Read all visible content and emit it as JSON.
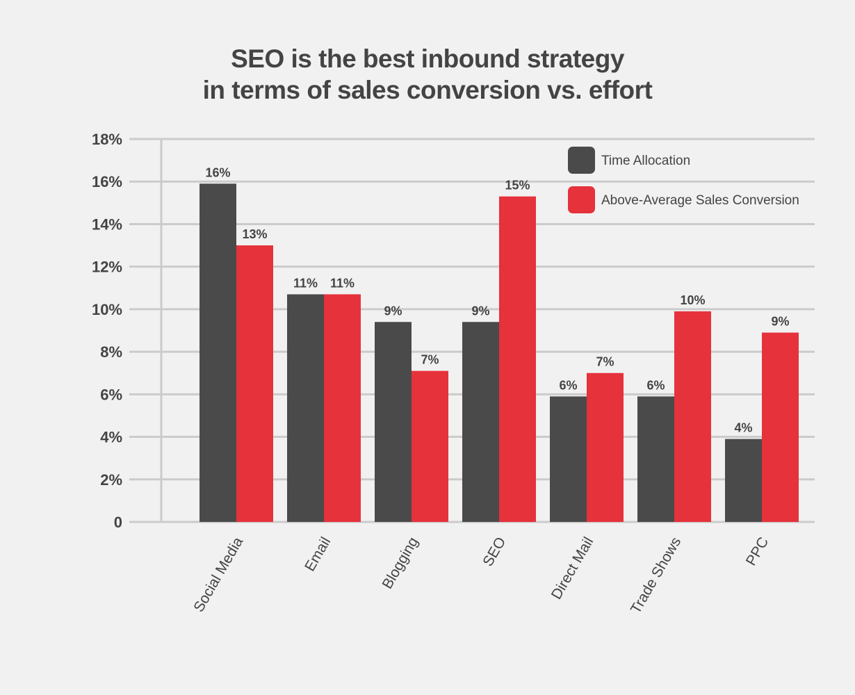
{
  "chart_data": {
    "type": "bar",
    "title": "SEO is the best inbound strategy in terms of sales conversion vs. effort",
    "title_lines": [
      "SEO is the best inbound strategy",
      "in terms of sales conversion vs. effort"
    ],
    "xlabel": "",
    "ylabel": "",
    "categories": [
      "Social Media",
      "Email",
      "Blogging",
      "SEO",
      "Direct Mail",
      "Trade Shows",
      "PPC"
    ],
    "series": [
      {
        "name": "Time Allocation",
        "color": "#4a4a4a",
        "values": [
          15.9,
          10.7,
          9.4,
          9.4,
          5.9,
          5.9,
          3.9
        ],
        "labels": [
          "16%",
          "11%",
          "9%",
          "9%",
          "6%",
          "6%",
          "4%"
        ]
      },
      {
        "name": "Above-Average Sales Conversion",
        "color": "#e5323b",
        "values": [
          13.0,
          10.7,
          7.1,
          15.3,
          7.0,
          9.9,
          8.9
        ],
        "labels": [
          "13%",
          "11%",
          "7%",
          "15%",
          "7%",
          "10%",
          "9%"
        ]
      }
    ],
    "ylim": [
      0,
      18
    ],
    "yticks": [
      0,
      2,
      4,
      6,
      8,
      10,
      12,
      14,
      16,
      18
    ],
    "ytick_labels": [
      "0",
      "2%",
      "4%",
      "6%",
      "8%",
      "10%",
      "12%",
      "14%",
      "16%",
      "18%"
    ],
    "grid": true,
    "legend_position": "top-right",
    "colors": {
      "background": "#f1f1f1",
      "grid": "#cbcbcb",
      "text": "#444444"
    }
  }
}
